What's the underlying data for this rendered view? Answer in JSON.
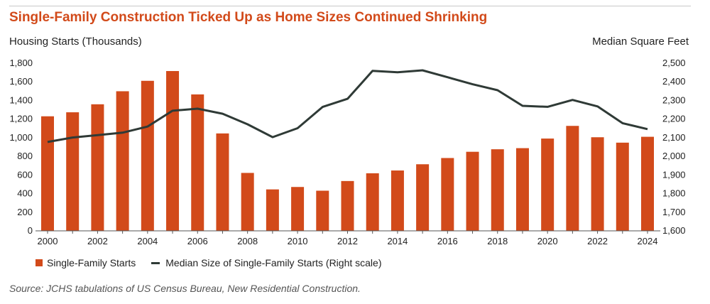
{
  "title": "Single-Family Construction Ticked Up as Home Sizes Continued Shrinking",
  "source": "Source: JCHS tabulations of US Census Bureau, New Residential Construction.",
  "colors": {
    "bar": "#d24a1a",
    "line": "#2f3a36",
    "title": "#d24a1a"
  },
  "chart_data": {
    "type": "bar",
    "left_axis_label": "Housing Starts (Thousands)",
    "right_axis_label": "Median Square Feet",
    "left_ylim": [
      0,
      1800
    ],
    "left_ticks": [
      "0",
      "200",
      "400",
      "600",
      "800",
      "1,000",
      "1,200",
      "1,400",
      "1,600",
      "1,800"
    ],
    "right_ylim": [
      1600,
      2500
    ],
    "right_ticks": [
      "1,600",
      "1,700",
      "1,800",
      "1,900",
      "2,000",
      "2,100",
      "2,200",
      "2,300",
      "2,400",
      "2,500"
    ],
    "x": [
      2000,
      2001,
      2002,
      2003,
      2004,
      2005,
      2006,
      2007,
      2008,
      2009,
      2010,
      2011,
      2012,
      2013,
      2014,
      2015,
      2016,
      2017,
      2018,
      2019,
      2020,
      2021,
      2022,
      2023,
      2024
    ],
    "x_tick_labels": [
      "2000",
      "2002",
      "2004",
      "2006",
      "2008",
      "2010",
      "2012",
      "2014",
      "2016",
      "2018",
      "2020",
      "2022",
      "2024"
    ],
    "grid": false,
    "legend_position": "bottom-left",
    "series": [
      {
        "name": "Single-Family Starts",
        "type": "bar",
        "axis": "left",
        "values": [
          1230,
          1273,
          1359,
          1499,
          1611,
          1716,
          1465,
          1046,
          622,
          445,
          471,
          431,
          535,
          618,
          648,
          715,
          782,
          849,
          876,
          888,
          991,
          1127,
          1005,
          947,
          1010
        ]
      },
      {
        "name": "Median Size of Single-Family Starts (Right scale)",
        "type": "line",
        "axis": "right",
        "values": [
          2077,
          2101,
          2114,
          2127,
          2160,
          2245,
          2256,
          2229,
          2172,
          2103,
          2151,
          2265,
          2309,
          2459,
          2451,
          2462,
          2425,
          2387,
          2355,
          2271,
          2266,
          2303,
          2268,
          2178,
          2146
        ]
      }
    ]
  }
}
